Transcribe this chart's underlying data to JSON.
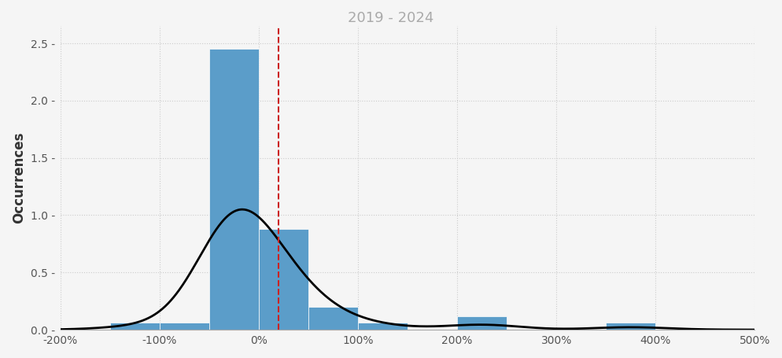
{
  "subtitle": "2019 - 2024",
  "subtitle_color": "#aaaaaa",
  "subtitle_fontsize": 13,
  "bar_color": "#5b9dc9",
  "bar_edgecolor": "#ffffff",
  "bar_linewidth": 0.5,
  "kde_color": "#000000",
  "kde_linewidth": 2,
  "vline_color": "#cc2222",
  "vline_style": "--",
  "vline_linewidth": 1.5,
  "ylabel": "Occurrences",
  "ylabel_fontsize": 12,
  "ylabel_fontweight": "bold",
  "xlim": [
    -2.0,
    5.0
  ],
  "ylim": [
    0,
    2.65
  ],
  "xticks": [
    -2.0,
    -1.0,
    0.0,
    1.0,
    2.0,
    3.0,
    4.0,
    5.0
  ],
  "xtick_labels": [
    "-200%",
    "-100%",
    "0%",
    "100%",
    "200%",
    "300%",
    "400%",
    "500%"
  ],
  "yticks": [
    0.0,
    0.5,
    1.0,
    1.5,
    2.0,
    2.5
  ],
  "background_color": "#f5f5f5",
  "grid_color": "#cccccc",
  "grid_style": ":",
  "grid_linewidth": 0.8,
  "vline_x": 0.2,
  "bin_centers": [
    -1.25,
    -0.75,
    -0.25,
    0.25,
    0.75,
    1.25,
    2.25,
    3.75
  ],
  "bin_heights": [
    0.06,
    0.06,
    2.45,
    0.88,
    0.2,
    0.06,
    0.12,
    0.06
  ],
  "bin_width": 0.5,
  "kde_peak_x": -0.05,
  "kde_peak_y": 1.05,
  "kde_sigma": 0.38,
  "kde_target_peak": 1.05
}
